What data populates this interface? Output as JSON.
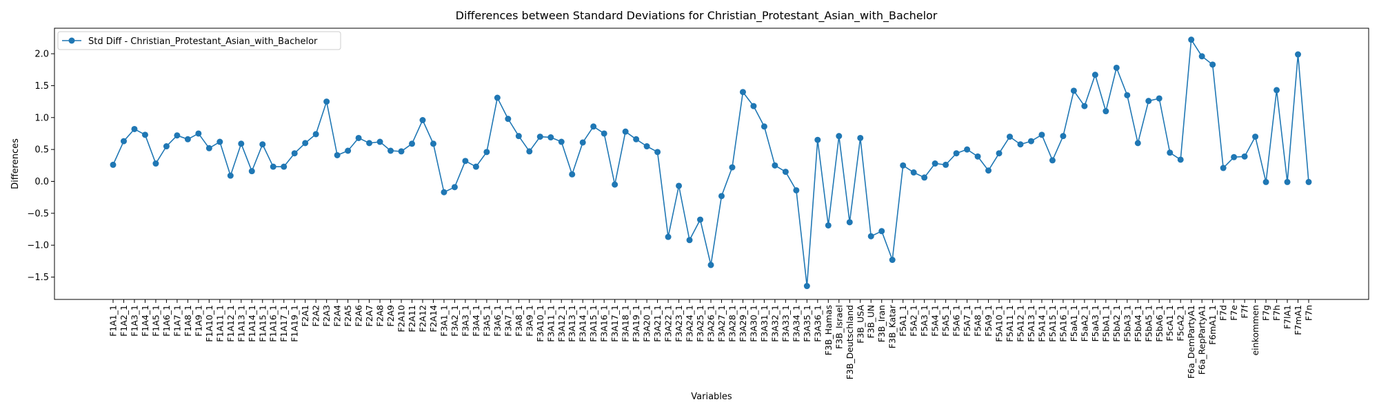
{
  "chart_data": {
    "type": "line",
    "title": "Differences between Standard Deviations for Christian_Protestant_Asian_with_Bachelor",
    "xlabel": "Variables",
    "ylabel": "Differences",
    "ylim": [
      -1.85,
      2.4
    ],
    "yticks": [
      -1.5,
      -1.0,
      -0.5,
      0.0,
      0.5,
      1.0,
      1.5,
      2.0
    ],
    "ytick_labels": [
      "−1.5",
      "−1.0",
      "−0.5",
      "0.0",
      "0.5",
      "1.0",
      "1.5",
      "2.0"
    ],
    "grid": false,
    "legend_position": "top-left",
    "color": "#1f77b4",
    "categories": [
      "F1A1_1",
      "F1A2_1",
      "F1A3_1",
      "F1A4_1",
      "F1A5_1",
      "F1A6_1",
      "F1A7_1",
      "F1A8_1",
      "F1A9_1",
      "F1A10_1",
      "F1A11_1",
      "F1A12_1",
      "F1A13_1",
      "F1A14_1",
      "F1A15_1",
      "F1A16_1",
      "F1A17_1",
      "F1A19_1",
      "F2A1",
      "F2A2",
      "F2A3",
      "F2A4",
      "F2A5",
      "F2A6",
      "F2A7",
      "F2A8",
      "F2A9",
      "F2A10",
      "F2A11",
      "F2A12",
      "F2A14",
      "F3A1_1",
      "F3A2_1",
      "F3A3_1",
      "F3A4_1",
      "F3A5_1",
      "F3A6_1",
      "F3A7_1",
      "F3A8_1",
      "F3A9_1",
      "F3A10_1",
      "F3A11_1",
      "F3A12_1",
      "F3A13_1",
      "F3A14_1",
      "F3A15_1",
      "F3A16_1",
      "F3A17_1",
      "F3A18_1",
      "F3A19_1",
      "F3A20_1",
      "F3A21_1",
      "F3A22_1",
      "F3A23_1",
      "F3A24_1",
      "F3A25_1",
      "F3A26_1",
      "F3A27_1",
      "F3A28_1",
      "F3A29_1",
      "F3A30_1",
      "F3A31_1",
      "F3A32_1",
      "F3A33_1",
      "F3A34_1",
      "F3A35_1",
      "F3A36_1",
      "F3B_Hamas",
      "F3B_Israel",
      "F3B_Deutschland",
      "F3B_USA",
      "F3B_UN",
      "F3B_Iran",
      "F3B_Katar",
      "F5A1_1",
      "F5A2_1",
      "F5A3_1",
      "F5A4_1",
      "F5A5_1",
      "F5A6_1",
      "F5A7_1",
      "F5A8_1",
      "F5A9_1",
      "F5A10_1",
      "F5A11_1",
      "F5A12_1",
      "F5A13_1",
      "F5A14_1",
      "F5A15_1",
      "F5A16_1",
      "F5aA1_1",
      "F5aA2_1",
      "F5aA3_1",
      "F5bA1_1",
      "F5bA2_1",
      "F5bA3_1",
      "F5bA4_1",
      "F5bA5_1",
      "F5bA6_1",
      "F5cA1_1",
      "F5cA2_1",
      "F6a_DemPartyA1",
      "F6a_RepPartyA1",
      "F6mA1_1",
      "F7d",
      "F7e",
      "F7f",
      "einkommen",
      "F7g",
      "F7h",
      "F7lA1",
      "F7mA1",
      "F7n"
    ],
    "series": [
      {
        "name": "Std Diff - Christian_Protestant_Asian_with_Bachelor",
        "values": [
          0.26,
          0.63,
          0.82,
          0.73,
          0.28,
          0.55,
          0.72,
          0.66,
          0.75,
          0.52,
          0.62,
          0.09,
          0.59,
          0.16,
          0.58,
          0.23,
          0.23,
          0.44,
          0.6,
          0.74,
          1.25,
          0.41,
          0.48,
          0.68,
          0.6,
          0.62,
          0.48,
          0.47,
          0.59,
          0.96,
          0.59,
          -0.17,
          -0.09,
          0.32,
          0.23,
          0.46,
          1.31,
          0.98,
          0.71,
          0.47,
          0.7,
          0.69,
          0.62,
          0.11,
          0.61,
          0.86,
          0.75,
          -0.05,
          0.78,
          0.66,
          0.55,
          0.46,
          -0.87,
          -0.07,
          -0.92,
          -0.6,
          -1.31,
          -0.23,
          0.22,
          1.4,
          1.18,
          0.86,
          0.25,
          0.15,
          -0.14,
          -1.64,
          0.65,
          -0.69,
          0.71,
          -0.64,
          0.68,
          -0.86,
          -0.78,
          -1.23,
          0.25,
          0.14,
          0.06,
          0.28,
          0.26,
          0.44,
          0.5,
          0.39,
          0.17,
          0.44,
          0.7,
          0.58,
          0.63,
          0.73,
          0.33,
          0.71,
          1.42,
          1.18,
          1.67,
          1.1,
          1.78,
          1.35,
          0.6,
          1.26,
          1.3,
          0.45,
          0.34,
          2.22,
          1.96,
          1.83,
          0.21,
          0.38,
          0.39,
          0.7,
          -0.01,
          1.43,
          -0.01,
          1.99,
          -0.01
        ]
      }
    ]
  }
}
